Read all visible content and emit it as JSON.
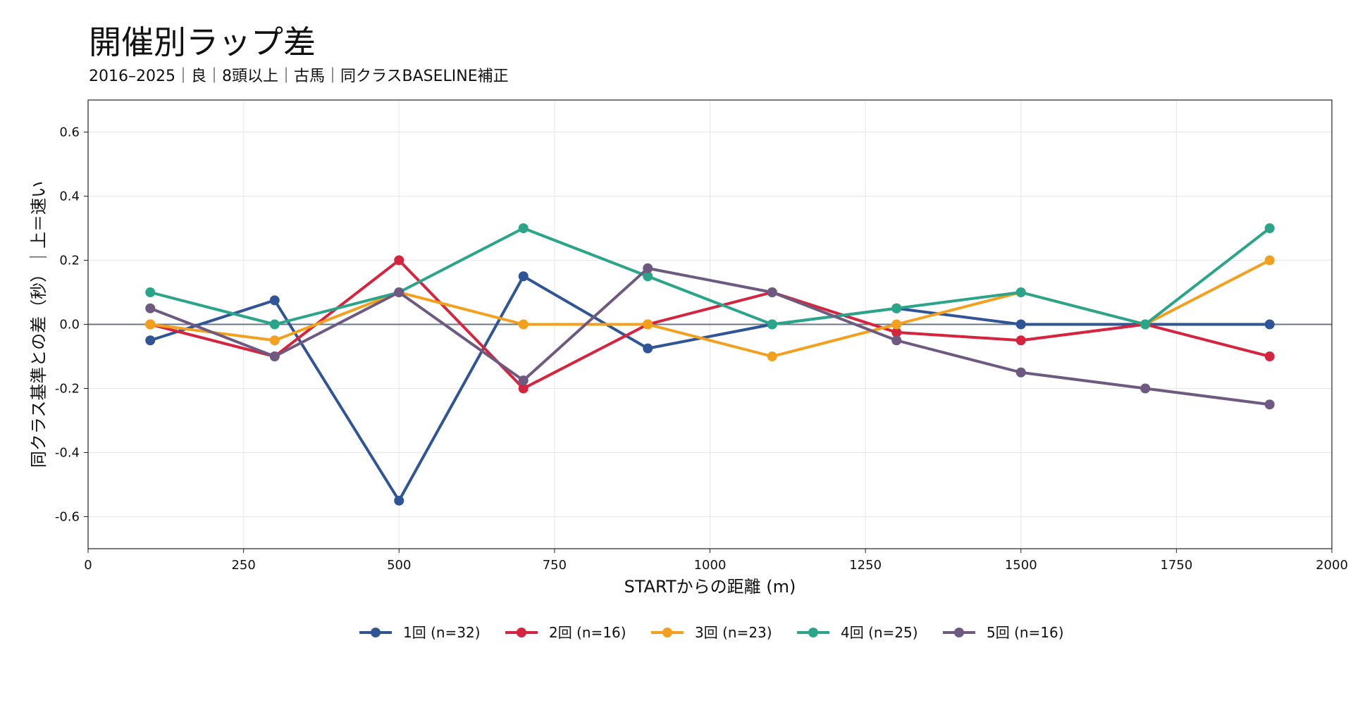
{
  "chart_data": {
    "type": "line",
    "title": "開催別ラップ差",
    "subtitle": "2016–2025｜良｜8頭以上｜古馬｜同クラスBASELINE補正",
    "xlabel": "STARTからの距離 (m)",
    "ylabel": "同クラス基準との差（秒）｜上＝速い",
    "xlim": [
      0,
      2000
    ],
    "ylim": [
      -0.7,
      0.7
    ],
    "xticks": [
      0,
      250,
      500,
      750,
      1000,
      1250,
      1500,
      1750,
      2000
    ],
    "xtick_labels": [
      "0",
      "250",
      "500",
      "750",
      "1000",
      "1250",
      "1500",
      "1750",
      "2000"
    ],
    "yticks": [
      -0.6,
      -0.4,
      -0.2,
      0.0,
      0.2,
      0.4,
      0.6
    ],
    "ytick_labels": [
      "-0.6",
      "-0.4",
      "-0.2",
      "0.0",
      "0.2",
      "0.4",
      "0.6"
    ],
    "grid": true,
    "zero_line": true,
    "legend_position": "bottom-center",
    "x": [
      100,
      300,
      500,
      700,
      900,
      1100,
      1300,
      1500,
      1700,
      1900
    ],
    "series": [
      {
        "name": "1回 (n=32)",
        "color": "#2f5597",
        "values": [
          -0.05,
          0.075,
          -0.55,
          0.15,
          -0.075,
          0.0,
          0.05,
          0.0,
          0.0,
          0.0
        ]
      },
      {
        "name": "2回 (n=16)",
        "color": "#d6243f",
        "values": [
          0.0,
          -0.1,
          0.2,
          -0.2,
          0.0,
          0.1,
          -0.025,
          -0.05,
          0.0,
          -0.1
        ]
      },
      {
        "name": "3回 (n=23)",
        "color": "#f2a01e",
        "values": [
          0.0,
          -0.05,
          0.1,
          0.0,
          0.0,
          -0.1,
          0.0,
          0.1,
          0.0,
          0.2
        ]
      },
      {
        "name": "4回 (n=25)",
        "color": "#2aa58a",
        "values": [
          0.1,
          0.0,
          0.1,
          0.3,
          0.15,
          0.0,
          0.05,
          0.1,
          0.0,
          0.3
        ]
      },
      {
        "name": "5回 (n=16)",
        "color": "#6e5a80",
        "values": [
          0.05,
          -0.1,
          0.1,
          -0.175,
          0.175,
          0.1,
          -0.05,
          -0.15,
          -0.2,
          -0.25
        ]
      }
    ]
  }
}
